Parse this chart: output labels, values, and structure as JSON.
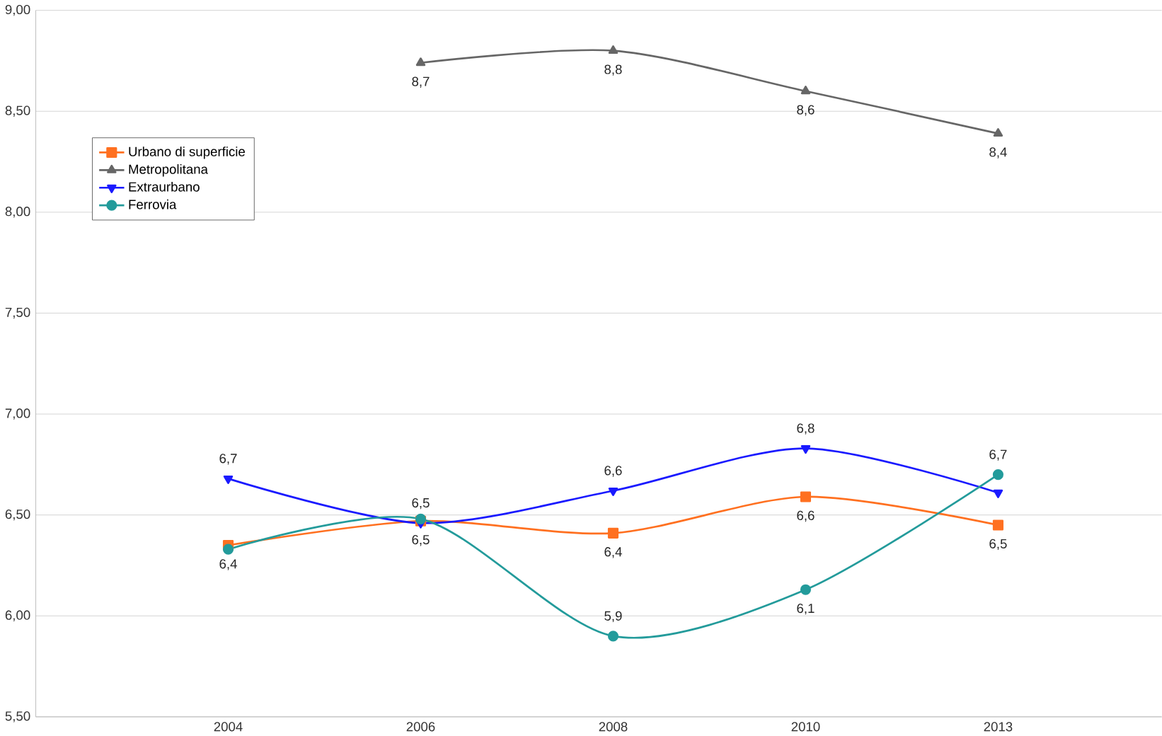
{
  "chart_data": {
    "type": "line",
    "categories": [
      "2004",
      "2006",
      "2008",
      "2010",
      "2013"
    ],
    "series": [
      {
        "name": "Urbano di superficie",
        "color": "#ff7020",
        "marker": "square",
        "values": [
          6.35,
          6.47,
          6.41,
          6.59,
          6.45
        ],
        "value_labels": [
          "6,4",
          "6,5",
          "6,4",
          "6,6",
          "6,5"
        ]
      },
      {
        "name": "Metropolitana",
        "color": "#666666",
        "marker": "triangle",
        "values": [
          null,
          8.74,
          8.8,
          8.6,
          8.39
        ],
        "value_labels": [
          null,
          "8,7",
          "8,8",
          "8,6",
          "8,4"
        ]
      },
      {
        "name": "Extraurbano",
        "color": "#1a1aff",
        "marker": "triangle down",
        "values": [
          6.68,
          6.46,
          6.62,
          6.83,
          6.61
        ],
        "value_labels": [
          "6,7",
          "6,5",
          "6,6",
          "6,8",
          null
        ]
      },
      {
        "name": "Ferrovia",
        "color": "#239b9b",
        "marker": "circle",
        "values": [
          6.33,
          6.48,
          5.9,
          6.13,
          6.7
        ],
        "value_labels": [
          null,
          null,
          "5,9",
          "6,1",
          "6,7"
        ]
      }
    ],
    "ylim": [
      5.5,
      9.0
    ],
    "yticks": [
      {
        "value": 5.5,
        "label": "5,50"
      },
      {
        "value": 6.0,
        "label": "6,00"
      },
      {
        "value": 6.5,
        "label": "6,50"
      },
      {
        "value": 7.0,
        "label": "7,00"
      },
      {
        "value": 7.5,
        "label": "7,50"
      },
      {
        "value": 8.0,
        "label": "8,00"
      },
      {
        "value": 8.5,
        "label": "8,50"
      },
      {
        "value": 9.0,
        "label": "9,00"
      }
    ],
    "grid": "y",
    "legend": "top left",
    "line_style": "solid"
  }
}
